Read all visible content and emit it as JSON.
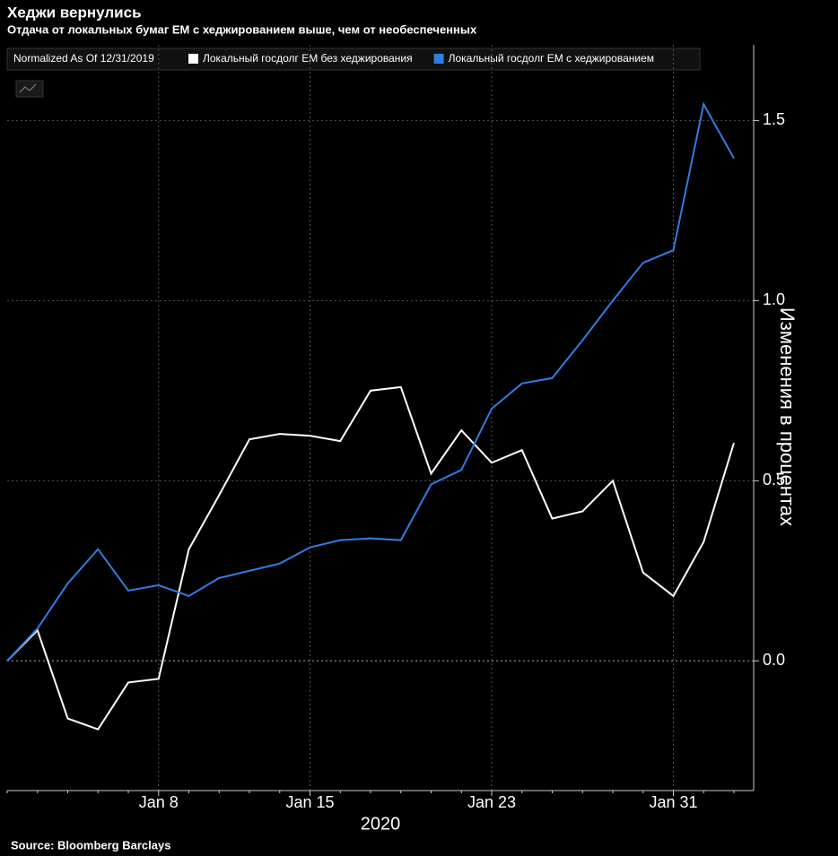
{
  "chart_data": {
    "type": "line",
    "title": "Хеджи вернулись",
    "subtitle": "Отдача от локальных бумаг EM с хеджированием выше, чем от необеспеченных",
    "legend_note": "Normalized As Of 12/31/2019",
    "y_label": "Изменения в процентах",
    "x_label": "2020",
    "source": "Source: Bloomberg Barclays",
    "categories": [
      null,
      null,
      null,
      null,
      null,
      "Jan 8",
      null,
      null,
      null,
      null,
      "Jan 15",
      null,
      null,
      null,
      null,
      null,
      "Jan 23",
      null,
      null,
      null,
      null,
      null,
      "Jan 31",
      null,
      null
    ],
    "series": [
      {
        "name": "Локальный госдолг EM без хеджирования",
        "color": "#ffffff",
        "values": [
          0,
          0.085,
          -0.16,
          -0.19,
          -0.06,
          -0.05,
          0.31,
          0.46,
          0.615,
          0.63,
          0.625,
          0.61,
          0.75,
          0.76,
          0.52,
          0.64,
          0.55,
          0.585,
          0.395,
          0.415,
          0.5,
          0.245,
          0.18,
          0.33,
          0.605
        ]
      },
      {
        "name": "Локальный госдолг EM с хеджированием",
        "color": "#2f7ee0",
        "values": [
          0,
          0.09,
          0.215,
          0.31,
          0.195,
          0.21,
          0.18,
          0.23,
          0.25,
          0.27,
          0.315,
          0.335,
          0.34,
          0.335,
          0.49,
          0.53,
          0.7,
          0.77,
          0.785,
          0.89,
          1.0,
          1.105,
          1.14,
          1.545,
          1.395
        ]
      }
    ],
    "ylim": [
      -0.36,
      1.71
    ],
    "yticks": [
      {
        "value": 0,
        "label": "0.0"
      },
      0.5,
      {
        "value": 1,
        "label": "1.0"
      },
      1.5
    ],
    "grid": true,
    "legend": "top-left"
  }
}
